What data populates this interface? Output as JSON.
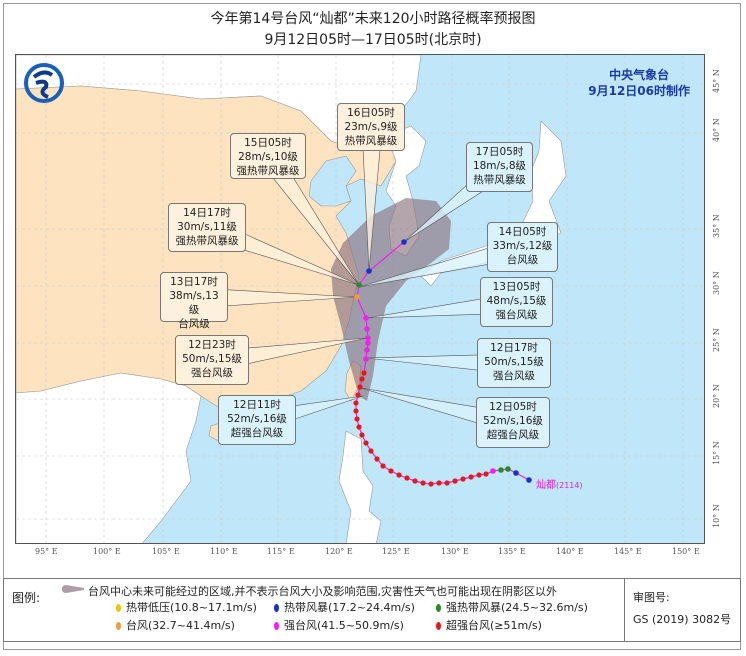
{
  "title": "今年第14号台风“灿都”未来120小时路径概率预报图",
  "subtitle": "9月12日05时—17日05时(北京时)",
  "agency": {
    "name": "中央气象台",
    "issued": "9月12日06时制作"
  },
  "typhoon": {
    "name": "灿都",
    "number": "(2114)"
  },
  "forecast_labels": [
    {
      "time": "16日05时",
      "wind": "23m/s,9级",
      "grade": "热带风暴级"
    },
    {
      "time": "15日05时",
      "wind": "28m/s,10级",
      "grade": "强热带风暴级"
    },
    {
      "time": "14日17时",
      "wind": "30m/s,11级",
      "grade": "强热带风暴级"
    },
    {
      "time": "13日17时",
      "wind": "38m/s,13级",
      "grade": "台风级"
    },
    {
      "time": "12日23时",
      "wind": "50m/s,15级",
      "grade": "强台风级"
    },
    {
      "time": "12日11时",
      "wind": "52m/s,16级",
      "grade": "超强台风级"
    },
    {
      "time": "17日05时",
      "wind": "18m/s,8级",
      "grade": "热带风暴级"
    },
    {
      "time": "14日05时",
      "wind": "33m/s,12级",
      "grade": "台风级"
    },
    {
      "time": "13日05时",
      "wind": "48m/s,15级",
      "grade": "强台风级"
    },
    {
      "time": "12日17时",
      "wind": "50m/s,15级",
      "grade": "强台风级"
    },
    {
      "time": "12日05时",
      "wind": "52m/s,16级",
      "grade": "超强台风级"
    }
  ],
  "lon_ticks": [
    "95° E",
    "100° E",
    "105° E",
    "110° E",
    "115° E",
    "120° E",
    "125° E",
    "130° E",
    "135° E",
    "140° E",
    "145° E",
    "150° E"
  ],
  "lat_ticks": [
    "45° N",
    "40° N",
    "35° N",
    "30° N",
    "25° N",
    "20° N",
    "15° N",
    "10° N"
  ],
  "legend": {
    "heading": "图例:",
    "cone_text": "台风中心未来可能经过的区域,并不表示台风大小及影响范围,灾害性天气也可能出现在阴影区以外",
    "items": [
      {
        "label": "热带低压(10.8~17.1m/s)",
        "color": "#f5c400"
      },
      {
        "label": "热带风暴(17.2~24.4m/s)",
        "color": "#1a2fd0"
      },
      {
        "label": "强热带风暴(24.5~32.6m/s)",
        "color": "#2a8a2a"
      },
      {
        "label": "台风(32.7~41.4m/s)",
        "color": "#f39a3c"
      },
      {
        "label": "强台风(41.5~50.9m/s)",
        "color": "#f020f0"
      },
      {
        "label": "超强台风(≥51m/s)",
        "color": "#e81818"
      }
    ],
    "approval_label": "审图号:",
    "approval_number": "GS (2019) 3082号"
  },
  "colors": {
    "sea": "#bfe7f9",
    "china_land": "#fde3bf",
    "foreign_land": "#ffffff",
    "cone": "#8c7380",
    "track": "#f020f0"
  }
}
